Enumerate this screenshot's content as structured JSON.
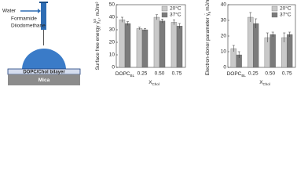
{
  "schematic": {
    "liquids": [
      "Water",
      "Formamide",
      "Diiodomethane"
    ],
    "bilayer": "DOPC/Chol bilayer",
    "substrate": "Mica"
  },
  "chart_data": [
    {
      "type": "bar",
      "ylabel": [
        [
          "Surface free energy γ",
          "normal"
        ],
        [
          "s",
          "sub"
        ],
        [
          "tot",
          "sup"
        ],
        [
          ", mJ/m²",
          "normal"
        ]
      ],
      "xlabel": [
        [
          "X",
          "normal"
        ],
        [
          "Chol",
          "sub"
        ]
      ],
      "categories": [
        [
          [
            "DOPC",
            "normal"
          ],
          [
            "BL",
            "sub"
          ]
        ],
        "0.25",
        "0.50",
        "0.75"
      ],
      "series": [
        {
          "name": "20°C",
          "color": "#c9c9c9",
          "values": [
            38,
            31,
            40,
            36
          ],
          "errors": [
            2,
            1,
            2,
            2
          ]
        },
        {
          "name": "37°C",
          "color": "#7b7b7b",
          "values": [
            35,
            30,
            37,
            33
          ],
          "errors": [
            1.5,
            1,
            1.5,
            2
          ]
        }
      ],
      "ylim": [
        0,
        50
      ],
      "yticks": [
        0,
        10,
        20,
        30,
        40,
        50
      ],
      "legend": "top-right"
    },
    {
      "type": "bar",
      "ylabel": [
        [
          "Electron-donor parameter γ",
          "normal"
        ],
        [
          "s",
          "sub"
        ],
        [
          "-",
          "sup"
        ],
        [
          ", mJ/m²",
          "normal"
        ]
      ],
      "xlabel": [
        [
          "X",
          "normal"
        ],
        [
          "Chol",
          "sub"
        ]
      ],
      "categories": [
        [
          [
            "DOPC",
            "normal"
          ],
          [
            "BL",
            "sub"
          ]
        ],
        "0.25",
        "0.50",
        "0.75"
      ],
      "series": [
        {
          "name": "20°C",
          "color": "#c9c9c9",
          "values": [
            12,
            32,
            19,
            19
          ],
          "errors": [
            2,
            3,
            3,
            3
          ]
        },
        {
          "name": "37°C",
          "color": "#7b7b7b",
          "values": [
            8,
            28,
            21,
            21
          ],
          "errors": [
            2,
            3,
            1.5,
            1.5
          ]
        }
      ],
      "ylim": [
        0,
        40
      ],
      "yticks": [
        0,
        10,
        20,
        30,
        40
      ],
      "legend": "top-right"
    }
  ]
}
